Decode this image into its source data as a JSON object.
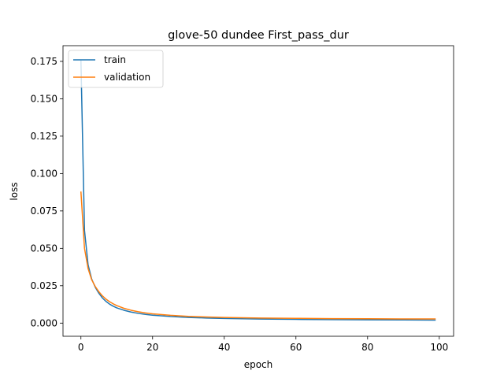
{
  "chart_data": {
    "type": "line",
    "title": "glove-50 dundee First_pass_dur",
    "xlabel": "epoch",
    "ylabel": "loss",
    "xlim": [
      -5,
      104
    ],
    "ylim": [
      -0.0088,
      0.1855
    ],
    "xticks": [
      0,
      20,
      40,
      60,
      80,
      100
    ],
    "xtick_labels": [
      "0",
      "20",
      "40",
      "60",
      "80",
      "100"
    ],
    "yticks": [
      0.0,
      0.025,
      0.05,
      0.075,
      0.1,
      0.125,
      0.15,
      0.175
    ],
    "ytick_labels": [
      "0.000",
      "0.025",
      "0.050",
      "0.075",
      "0.100",
      "0.125",
      "0.150",
      "0.175"
    ],
    "grid": false,
    "legend": "top-left",
    "series": [
      {
        "name": "train",
        "color": "#1f77b4",
        "x": [
          0,
          1,
          2,
          3,
          4,
          5,
          6,
          7,
          8,
          9,
          10,
          12,
          14,
          16,
          18,
          20,
          25,
          30,
          35,
          40,
          50,
          60,
          70,
          80,
          90,
          99
        ],
        "y": [
          0.176,
          0.062,
          0.039,
          0.0295,
          0.024,
          0.02,
          0.0168,
          0.0145,
          0.0127,
          0.0113,
          0.0102,
          0.0086,
          0.0074,
          0.0065,
          0.0058,
          0.0053,
          0.0044,
          0.0038,
          0.0034,
          0.0031,
          0.0027,
          0.0025,
          0.0023,
          0.0022,
          0.0021,
          0.002
        ]
      },
      {
        "name": "validation",
        "color": "#ff7f0e",
        "x": [
          0,
          1,
          2,
          3,
          4,
          5,
          6,
          7,
          8,
          9,
          10,
          12,
          14,
          16,
          18,
          20,
          25,
          30,
          35,
          40,
          50,
          60,
          70,
          80,
          90,
          99
        ],
        "y": [
          0.088,
          0.05,
          0.0365,
          0.029,
          0.0245,
          0.021,
          0.0182,
          0.016,
          0.0143,
          0.0129,
          0.0117,
          0.0099,
          0.0086,
          0.0076,
          0.0068,
          0.0062,
          0.0052,
          0.0045,
          0.0041,
          0.0038,
          0.0034,
          0.0032,
          0.003,
          0.0029,
          0.0028,
          0.0028
        ]
      }
    ]
  }
}
